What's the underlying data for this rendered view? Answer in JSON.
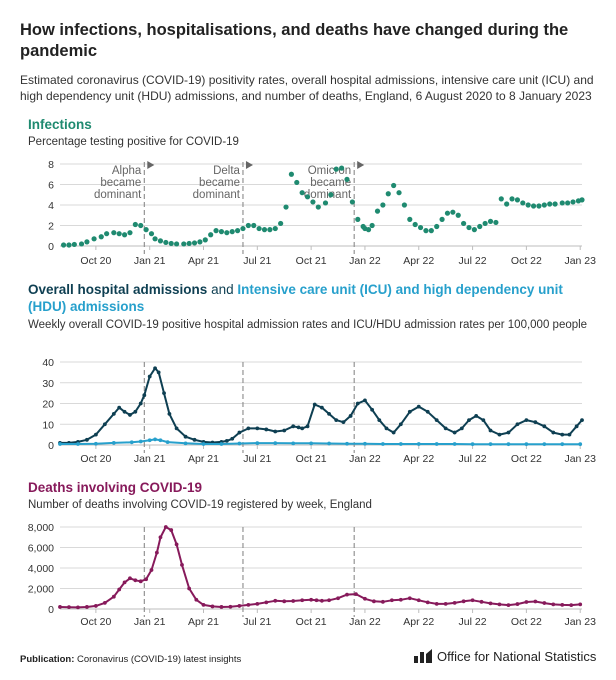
{
  "title": "How infections, hospitalisations, and deaths have changed during the pandemic",
  "subtitle": "Estimated coronavirus (COVID-19) positivity rates, overall hospital admissions, intensive care unit (ICU) and high dependency unit (HDU) admissions, and number of deaths, England, 6 August 2020 to 8 January 2023",
  "x_tick_labels": [
    "Oct 20",
    "Jan 21",
    "Apr 21",
    "Jul 21",
    "Oct 21",
    "Jan 22",
    "Apr 22",
    "Jul 22",
    "Oct 22",
    "Jan 23"
  ],
  "variant_labels": [
    {
      "lines": [
        "Alpha",
        "became",
        "dominant"
      ]
    },
    {
      "lines": [
        "Delta",
        "became",
        "dominant"
      ]
    },
    {
      "lines": [
        "Omicron",
        "became",
        "dominant"
      ]
    }
  ],
  "panels": {
    "infections": {
      "title": "Infections",
      "subtitle": "Percentage testing positive for COVID-19"
    },
    "hospital": {
      "title_part1": "Overall hospital admissions",
      "title_and": " and ",
      "title_part2": "Intensive care unit (ICU) and high dependency unit (HDU) admissions",
      "subtitle": "Weekly overall COVID-19 positive hospital admission rates and ICU/HDU admission rates per 100,000 people"
    },
    "deaths": {
      "title": "Deaths involving COVID-19",
      "subtitle": "Number of deaths involving COVID-19 registered by week, England"
    }
  },
  "footer": {
    "label": "Publication:",
    "text": " Coronavirus (COVID-19) latest insights",
    "org": "Office for National Statistics"
  },
  "colors": {
    "infections": "#1f8a70",
    "hospital": "#0e3f52",
    "icu": "#27a0cc",
    "deaths": "#871a5b",
    "grid": "#d9d9d9",
    "variant_line": "#8a8a8a"
  },
  "chart_data": [
    {
      "type": "scatter",
      "title": "Infections",
      "ylabel": "Percentage testing positive for COVID-19",
      "x_unit": "month index (0 = Aug 2020)",
      "ylim": [
        0,
        8
      ],
      "yticks": [
        0,
        2,
        4,
        6,
        8
      ],
      "series": [
        {
          "x": [
            0.2,
            0.5,
            0.8,
            1.2,
            1.5,
            1.9,
            2.3,
            2.6,
            3.0,
            3.3,
            3.6,
            3.9,
            4.2,
            4.5,
            4.8,
            5.1,
            5.3,
            5.6,
            5.9,
            6.2,
            6.5,
            6.9,
            7.2,
            7.5,
            7.8,
            8.1,
            8.4,
            8.7,
            9.0,
            9.3,
            9.6,
            9.9,
            10.2,
            10.5,
            10.8,
            11.1,
            11.4,
            11.7,
            12.0,
            12.3,
            12.6,
            12.9,
            13.2,
            13.5,
            13.8,
            14.1,
            14.4,
            14.8,
            15.1,
            15.4,
            15.7,
            16.0,
            16.3,
            16.6,
            16.9,
            17.0,
            17.2,
            17.4,
            17.7,
            18.0,
            18.3,
            18.6,
            18.9,
            19.2,
            19.5,
            19.8,
            20.1,
            20.4,
            20.7,
            21.0,
            21.3,
            21.6,
            21.9,
            22.2,
            22.5,
            22.8,
            23.1,
            23.4,
            23.7,
            24.0,
            24.3,
            24.6,
            24.9,
            25.2,
            25.5,
            25.8,
            26.1,
            26.4,
            26.7,
            27.0,
            27.3,
            27.6,
            28.0,
            28.3,
            28.6,
            28.9,
            29.1
          ],
          "y": [
            0.1,
            0.1,
            0.15,
            0.2,
            0.4,
            0.7,
            0.9,
            1.2,
            1.3,
            1.2,
            1.1,
            1.3,
            2.1,
            2.0,
            1.6,
            1.2,
            0.7,
            0.5,
            0.35,
            0.25,
            0.2,
            0.2,
            0.25,
            0.3,
            0.4,
            0.6,
            1.1,
            1.5,
            1.4,
            1.3,
            1.4,
            1.5,
            1.7,
            2.0,
            2.0,
            1.7,
            1.6,
            1.6,
            1.7,
            2.2,
            3.8,
            7.0,
            6.2,
            5.2,
            4.8,
            4.3,
            3.8,
            4.2,
            5.0,
            7.5,
            7.6,
            6.5,
            4.3,
            2.6,
            1.9,
            1.7,
            1.6,
            2.0,
            3.4,
            4.0,
            5.1,
            5.9,
            5.2,
            4.0,
            2.6,
            2.1,
            1.8,
            1.5,
            1.5,
            1.9,
            2.6,
            3.2,
            3.3,
            3.0,
            2.2,
            1.8,
            1.6,
            1.9,
            2.2,
            2.4,
            2.3,
            4.6,
            4.1,
            4.6,
            4.5,
            4.2,
            4.0,
            3.9,
            3.9,
            4.0,
            4.1,
            4.1,
            4.2,
            4.2,
            4.3,
            4.4,
            4.5
          ]
        }
      ]
    },
    {
      "type": "line",
      "title": "Overall hospital admissions and Intensive care unit (ICU) and high dependency unit (HDU) admissions",
      "ylabel": "Weekly admission rate per 100,000 people",
      "x_unit": "month index (0 = Aug 2020)",
      "ylim": [
        0,
        40
      ],
      "yticks": [
        0,
        10,
        20,
        30,
        40
      ],
      "series": [
        {
          "name": "Overall hospital admissions",
          "x": [
            0,
            0.5,
            1,
            1.5,
            2,
            2.5,
            3,
            3.3,
            3.6,
            3.9,
            4.2,
            4.5,
            4.7,
            5.0,
            5.3,
            5.5,
            5.8,
            6.1,
            6.5,
            7,
            7.5,
            8,
            8.5,
            9,
            9.3,
            9.6,
            10,
            10.5,
            11,
            11.5,
            12,
            12.5,
            13,
            13.3,
            13.5,
            13.8,
            14.2,
            14.6,
            15.0,
            15.4,
            15.8,
            16.2,
            16.6,
            17.0,
            17.4,
            17.8,
            18.2,
            18.6,
            19.0,
            19.5,
            20.0,
            20.5,
            21.0,
            21.5,
            22.0,
            22.4,
            22.8,
            23.2,
            23.6,
            24.0,
            24.5,
            25.0,
            25.5,
            26.0,
            26.5,
            27.0,
            27.5,
            28.0,
            28.4,
            28.8,
            29.1
          ],
          "y": [
            1,
            1,
            1.5,
            2.5,
            5,
            10,
            15,
            18,
            16,
            14.5,
            16,
            20,
            24,
            33,
            37,
            35,
            25,
            15,
            8,
            4,
            2.5,
            1.5,
            1.2,
            1.5,
            2,
            3,
            6,
            8,
            8,
            7.5,
            6.5,
            7,
            9,
            8.5,
            8,
            9,
            19.5,
            18,
            15,
            12,
            11,
            14,
            20,
            21.5,
            17,
            12,
            8,
            6,
            10,
            16,
            18.5,
            16,
            12,
            8,
            6,
            8,
            12,
            14,
            12,
            7,
            5,
            6,
            10,
            12,
            11,
            9,
            6,
            5,
            5,
            9,
            12
          ]
        },
        {
          "name": "Intensive care unit (ICU) and high dependency unit (HDU) admissions",
          "x": [
            0,
            1,
            2,
            3,
            4,
            4.5,
            5,
            5.3,
            5.6,
            6,
            7,
            8,
            9,
            10,
            11,
            12,
            13,
            14,
            15,
            16,
            17,
            18,
            19,
            20,
            21,
            22,
            23,
            24,
            25,
            26,
            27,
            28,
            29
          ],
          "y": [
            0.5,
            0.5,
            0.6,
            1.0,
            1.3,
            1.7,
            2.3,
            2.7,
            2.3,
            1.4,
            0.8,
            0.5,
            0.5,
            0.7,
            0.9,
            0.9,
            0.8,
            0.8,
            0.7,
            0.6,
            0.6,
            0.5,
            0.5,
            0.5,
            0.5,
            0.5,
            0.4,
            0.4,
            0.4,
            0.4,
            0.4,
            0.4,
            0.4
          ]
        }
      ]
    },
    {
      "type": "line",
      "title": "Deaths involving COVID-19",
      "ylabel": "Number of deaths involving COVID-19 registered by week, England",
      "x_unit": "month index (0 = Aug 2020)",
      "ylim": [
        0,
        8000
      ],
      "yticks": [
        0,
        2000,
        4000,
        6000,
        8000
      ],
      "ytick_labels": [
        "0",
        "2,000",
        "4,000",
        "6,000",
        "8,000"
      ],
      "series": [
        {
          "name": "Deaths involving COVID-19",
          "x": [
            0,
            0.5,
            1,
            1.5,
            2,
            2.5,
            3,
            3.3,
            3.6,
            3.9,
            4.2,
            4.5,
            4.8,
            5.1,
            5.4,
            5.6,
            5.9,
            6.2,
            6.5,
            6.8,
            7.2,
            7.6,
            8,
            8.5,
            9,
            9.5,
            10,
            10.5,
            11,
            11.5,
            12,
            12.5,
            13,
            13.5,
            14,
            14.3,
            14.6,
            15,
            15.5,
            16,
            16.5,
            17,
            17.5,
            18,
            18.5,
            19,
            19.5,
            20,
            20.5,
            21,
            21.5,
            22,
            22.5,
            23,
            23.5,
            24,
            24.5,
            25,
            25.5,
            26,
            26.5,
            27,
            27.5,
            28,
            28.5,
            29
          ],
          "y": [
            200,
            180,
            160,
            200,
            300,
            600,
            1200,
            1900,
            2600,
            3000,
            2800,
            2700,
            2900,
            3800,
            5500,
            7000,
            8000,
            7700,
            6300,
            4300,
            2000,
            900,
            400,
            250,
            200,
            220,
            300,
            400,
            500,
            650,
            800,
            750,
            780,
            850,
            900,
            850,
            800,
            850,
            1050,
            1400,
            1450,
            1000,
            750,
            700,
            850,
            900,
            1050,
            850,
            650,
            500,
            500,
            600,
            750,
            850,
            700,
            550,
            450,
            380,
            480,
            680,
            730,
            580,
            450,
            400,
            380,
            450
          ]
        }
      ]
    }
  ]
}
